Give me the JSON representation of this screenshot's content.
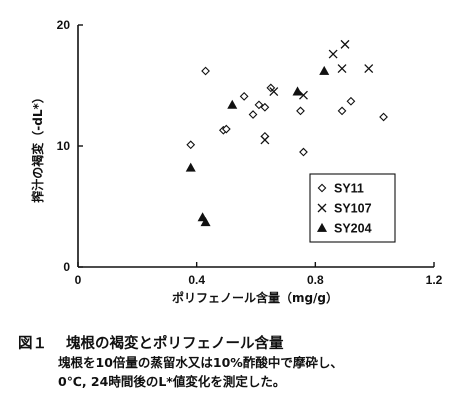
{
  "chart_data": {
    "type": "scatter",
    "xlabel": "ポリフェノール含量（mg/g）",
    "ylabel": "搾汁の褐変（-dL*）",
    "xlim": [
      0,
      1.2
    ],
    "ylim": [
      0,
      20
    ],
    "xticks": [
      "0",
      "0.4",
      "0.8",
      "1.2"
    ],
    "yticks": [
      "0",
      "10",
      "20"
    ],
    "legend_position": "bottom-right",
    "series": [
      {
        "name": "SY11",
        "marker": "diamond",
        "points": [
          [
            0.38,
            10.1
          ],
          [
            0.43,
            16.2
          ],
          [
            0.49,
            11.3
          ],
          [
            0.5,
            11.4
          ],
          [
            0.56,
            14.1
          ],
          [
            0.59,
            12.6
          ],
          [
            0.61,
            13.4
          ],
          [
            0.63,
            13.2
          ],
          [
            0.63,
            10.8
          ],
          [
            0.65,
            14.8
          ],
          [
            0.75,
            12.9
          ],
          [
            0.76,
            9.5
          ],
          [
            0.89,
            12.9
          ],
          [
            0.92,
            13.7
          ],
          [
            1.03,
            12.4
          ]
        ]
      },
      {
        "name": "SY107",
        "marker": "x",
        "points": [
          [
            0.63,
            10.5
          ],
          [
            0.66,
            14.5
          ],
          [
            0.76,
            14.2
          ],
          [
            0.86,
            17.6
          ],
          [
            0.89,
            16.4
          ],
          [
            0.9,
            18.4
          ],
          [
            0.98,
            16.4
          ]
        ]
      },
      {
        "name": "SY204",
        "marker": "triangle",
        "points": [
          [
            0.38,
            8.2
          ],
          [
            0.42,
            4.1
          ],
          [
            0.43,
            3.7
          ],
          [
            0.52,
            13.4
          ],
          [
            0.74,
            14.5
          ],
          [
            0.83,
            16.2
          ]
        ]
      }
    ]
  },
  "caption": {
    "figure_number": "図１",
    "title": "塊根の褐変とポリフェノール含量",
    "line2": "塊根を10倍量の蒸留水又は10%酢酸中で摩砕し、",
    "line3": "0℃, 24時間後のL*値変化を測定した。"
  }
}
